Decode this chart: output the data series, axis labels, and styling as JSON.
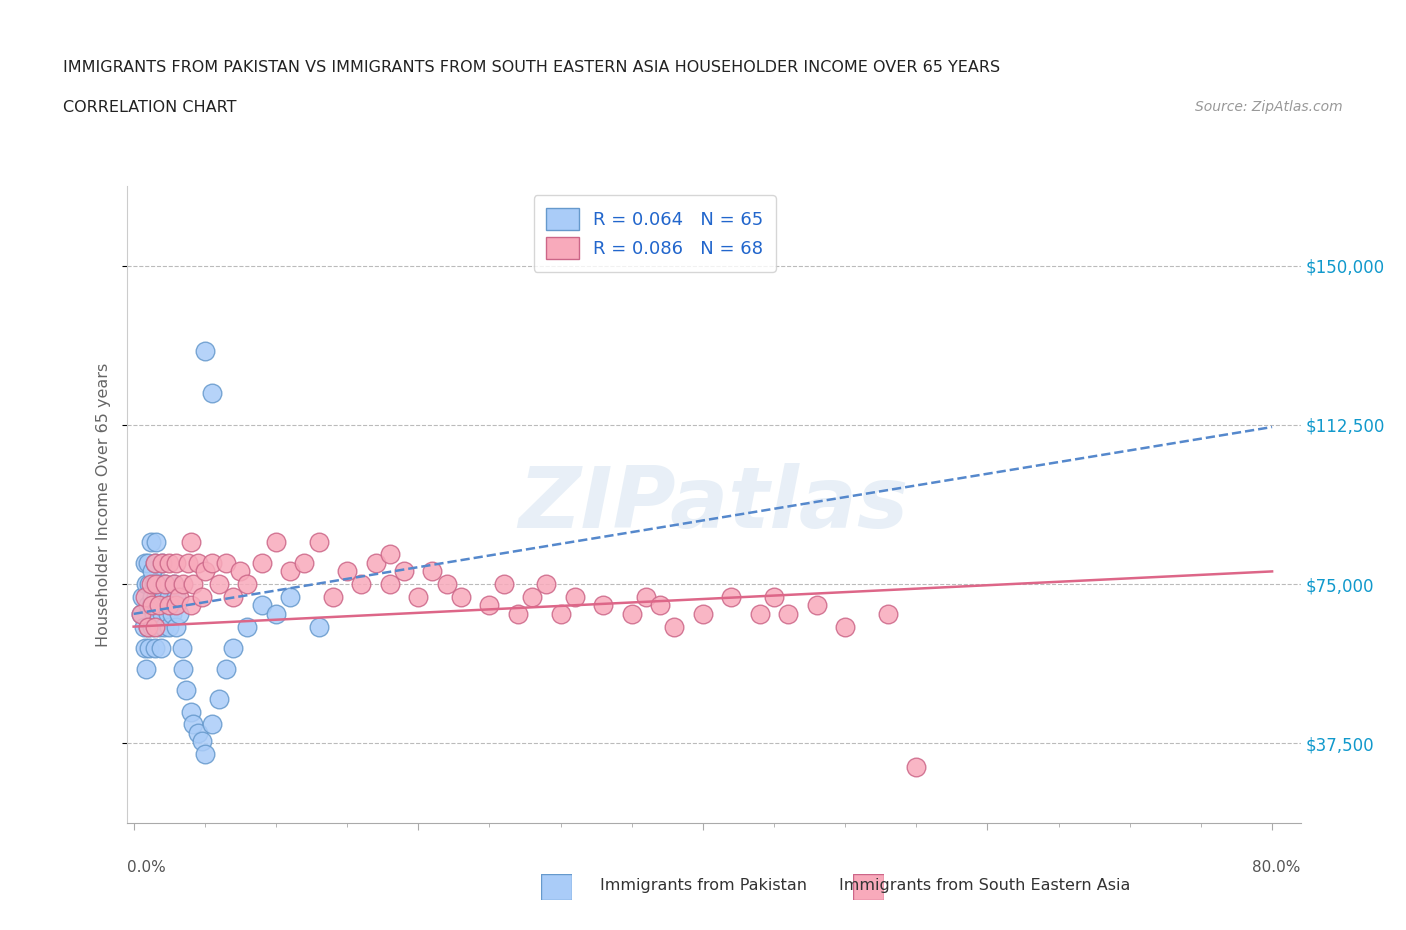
{
  "title_line1": "IMMIGRANTS FROM PAKISTAN VS IMMIGRANTS FROM SOUTH EASTERN ASIA HOUSEHOLDER INCOME OVER 65 YEARS",
  "title_line2": "CORRELATION CHART",
  "source_text": "Source: ZipAtlas.com",
  "ylabel": "Householder Income Over 65 years",
  "xlim": [
    -0.005,
    0.82
  ],
  "ylim": [
    18750,
    168750
  ],
  "yticks": [
    37500,
    75000,
    112500,
    150000
  ],
  "ytick_labels": [
    "$37,500",
    "$75,000",
    "$112,500",
    "$150,000"
  ],
  "xticks_major": [
    0.0,
    0.2,
    0.4,
    0.6,
    0.8
  ],
  "xticks_minor": [
    0.05,
    0.1,
    0.15,
    0.25,
    0.3,
    0.35,
    0.45,
    0.5,
    0.55,
    0.65,
    0.7,
    0.75
  ],
  "xtick_labels_ends": [
    "0.0%",
    "80.0%"
  ],
  "pakistan_color": "#aaccf8",
  "pakistan_edge": "#6699cc",
  "sea_color": "#f8aabb",
  "sea_edge": "#cc6688",
  "pakistan_label": "Immigrants from Pakistan",
  "sea_label": "Immigrants from South Eastern Asia",
  "R_pakistan": 0.064,
  "N_pakistan": 65,
  "R_sea": 0.086,
  "N_sea": 68,
  "trend_color_pakistan": "#5588cc",
  "trend_color_sea": "#dd6688",
  "pakistan_x": [
    0.005,
    0.006,
    0.007,
    0.008,
    0.008,
    0.009,
    0.009,
    0.01,
    0.01,
    0.01,
    0.011,
    0.011,
    0.012,
    0.012,
    0.013,
    0.013,
    0.013,
    0.014,
    0.014,
    0.015,
    0.015,
    0.015,
    0.016,
    0.016,
    0.017,
    0.017,
    0.018,
    0.018,
    0.019,
    0.019,
    0.02,
    0.02,
    0.02,
    0.021,
    0.021,
    0.022,
    0.023,
    0.024,
    0.025,
    0.025,
    0.026,
    0.027,
    0.028,
    0.03,
    0.03,
    0.032,
    0.034,
    0.035,
    0.037,
    0.04,
    0.042,
    0.045,
    0.048,
    0.05,
    0.055,
    0.06,
    0.065,
    0.07,
    0.08,
    0.09,
    0.1,
    0.11,
    0.13,
    0.05,
    0.055
  ],
  "pakistan_y": [
    68000,
    72000,
    65000,
    80000,
    60000,
    75000,
    55000,
    70000,
    80000,
    65000,
    75000,
    60000,
    85000,
    70000,
    72000,
    65000,
    78000,
    75000,
    68000,
    80000,
    70000,
    60000,
    85000,
    72000,
    68000,
    75000,
    70000,
    65000,
    72000,
    60000,
    75000,
    68000,
    80000,
    72000,
    65000,
    75000,
    70000,
    68000,
    72000,
    65000,
    70000,
    68000,
    75000,
    65000,
    72000,
    68000,
    60000,
    55000,
    50000,
    45000,
    42000,
    40000,
    38000,
    35000,
    42000,
    48000,
    55000,
    60000,
    65000,
    70000,
    68000,
    72000,
    65000,
    130000,
    120000
  ],
  "sea_x": [
    0.005,
    0.008,
    0.01,
    0.012,
    0.013,
    0.015,
    0.015,
    0.016,
    0.018,
    0.02,
    0.022,
    0.025,
    0.025,
    0.028,
    0.03,
    0.03,
    0.032,
    0.035,
    0.038,
    0.04,
    0.04,
    0.042,
    0.045,
    0.048,
    0.05,
    0.055,
    0.06,
    0.065,
    0.07,
    0.075,
    0.08,
    0.09,
    0.1,
    0.11,
    0.12,
    0.13,
    0.14,
    0.15,
    0.16,
    0.17,
    0.18,
    0.18,
    0.19,
    0.2,
    0.21,
    0.22,
    0.23,
    0.25,
    0.26,
    0.27,
    0.28,
    0.29,
    0.3,
    0.31,
    0.33,
    0.35,
    0.36,
    0.37,
    0.38,
    0.4,
    0.42,
    0.44,
    0.45,
    0.46,
    0.48,
    0.5,
    0.53,
    0.55
  ],
  "sea_y": [
    68000,
    72000,
    65000,
    75000,
    70000,
    80000,
    65000,
    75000,
    70000,
    80000,
    75000,
    70000,
    80000,
    75000,
    70000,
    80000,
    72000,
    75000,
    80000,
    70000,
    85000,
    75000,
    80000,
    72000,
    78000,
    80000,
    75000,
    80000,
    72000,
    78000,
    75000,
    80000,
    85000,
    78000,
    80000,
    85000,
    72000,
    78000,
    75000,
    80000,
    75000,
    82000,
    78000,
    72000,
    78000,
    75000,
    72000,
    70000,
    75000,
    68000,
    72000,
    75000,
    68000,
    72000,
    70000,
    68000,
    72000,
    70000,
    65000,
    68000,
    72000,
    68000,
    72000,
    68000,
    70000,
    65000,
    68000,
    32000
  ]
}
